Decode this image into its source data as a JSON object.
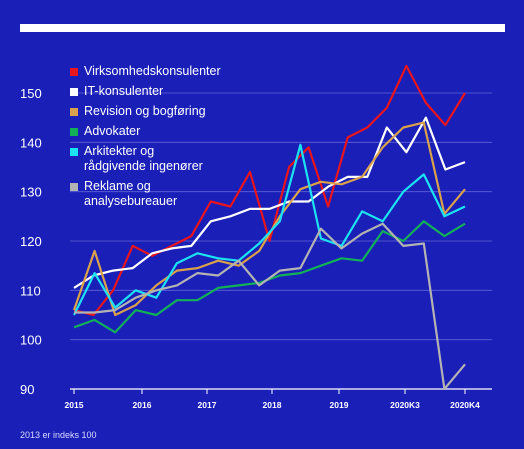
{
  "chart_data": {
    "type": "line",
    "x_tick_labels": [
      "2015",
      "2016",
      "2017",
      "2018",
      "2019",
      "2020K3",
      "2020K4"
    ],
    "ylim": [
      90,
      155
    ],
    "y_ticks": [
      90,
      100,
      110,
      120,
      130,
      140,
      150
    ],
    "grid": true,
    "legend_position": "top-left",
    "note": "2013 er indeks 100",
    "series": [
      {
        "name": "Virksomhedskonsulenter",
        "color": "#e8141e",
        "values": [
          106.0,
          105.0,
          110.0,
          119.0,
          117.0,
          119.0,
          121.0,
          128.0,
          127.0,
          134.0,
          120.0,
          135.0,
          139.0,
          127.0,
          141.0,
          143.0,
          147.0,
          155.5,
          148.0,
          143.5,
          150.0
        ]
      },
      {
        "name": "IT-konsulenter",
        "color": "#ffffff",
        "values": [
          110.5,
          113.0,
          114.0,
          114.5,
          117.5,
          118.5,
          119.0,
          124.0,
          125.0,
          126.5,
          126.5,
          128.0,
          128.0,
          131.0,
          133.0,
          133.0,
          143.0,
          138.0,
          145.0,
          134.5,
          136.0
        ]
      },
      {
        "name": "Revision og bogføring",
        "color": "#d9a14c",
        "values": [
          106.0,
          118.0,
          105.0,
          107.0,
          111.0,
          114.0,
          114.5,
          116.0,
          115.0,
          118.0,
          125.0,
          130.5,
          132.0,
          131.5,
          133.0,
          139.0,
          143.0,
          144.0,
          125.5,
          130.5
        ]
      },
      {
        "name": "Advokater",
        "color": "#12b058",
        "values": [
          102.5,
          104.0,
          101.5,
          106.0,
          105.0,
          108.0,
          108.0,
          110.5,
          111.0,
          111.5,
          113.0,
          113.5,
          115.0,
          116.5,
          116.0,
          122.0,
          120.0,
          124.0,
          121.0,
          123.5
        ]
      },
      {
        "name": "Arkitekter og\nrådgivende ingenører",
        "color": "#1de2f2",
        "values": [
          105.0,
          113.5,
          106.5,
          110.0,
          108.5,
          115.5,
          117.5,
          116.5,
          116.0,
          119.5,
          124.0,
          139.5,
          120.5,
          119.0,
          126.0,
          124.0,
          130.0,
          133.5,
          125.0,
          127.0
        ]
      },
      {
        "name": "Reklame og\nanalysebureauer",
        "color": "#b3b3b3",
        "values": [
          105.5,
          105.5,
          106.0,
          108.5,
          110.0,
          111.0,
          113.5,
          113.0,
          116.0,
          111.0,
          114.0,
          114.5,
          122.5,
          118.5,
          121.5,
          123.5,
          119.0,
          119.5,
          90.0,
          95.0
        ]
      }
    ]
  }
}
